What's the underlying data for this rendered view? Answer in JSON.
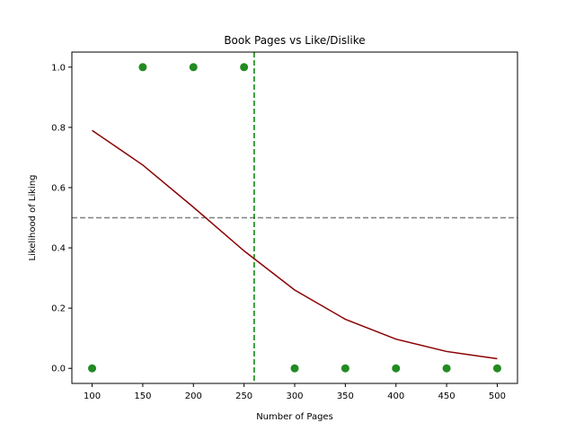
{
  "chart_data": {
    "type": "scatter",
    "title": "Book Pages vs Like/Dislike",
    "xlabel": "Number of Pages",
    "ylabel": "Likelihood of Liking",
    "xlim": [
      80,
      520
    ],
    "ylim": [
      -0.05,
      1.05
    ],
    "xticks": [
      100,
      150,
      200,
      250,
      300,
      350,
      400,
      450,
      500
    ],
    "yticks": [
      0.0,
      0.2,
      0.4,
      0.6,
      0.8,
      1.0
    ],
    "ytick_labels": [
      "0.0",
      "0.2",
      "0.4",
      "0.6",
      "0.8",
      "1.0"
    ],
    "grid": false,
    "points": {
      "x": [
        100,
        150,
        200,
        250,
        300,
        350,
        400,
        450,
        500
      ],
      "y": [
        0,
        1,
        1,
        1,
        0,
        0,
        0,
        0,
        0
      ],
      "color": "#228b22"
    },
    "curve": {
      "x": [
        100,
        150,
        200,
        250,
        300,
        350,
        400,
        450,
        500
      ],
      "y": [
        0.79,
        0.675,
        0.535,
        0.39,
        0.26,
        0.163,
        0.097,
        0.056,
        0.032
      ],
      "color": "#8b0000"
    },
    "reference_lines": {
      "horizontal": {
        "y": 0.5,
        "color": "#808080",
        "style": "dashed"
      },
      "vertical": {
        "x": 260,
        "color": "#008000",
        "style": "dashed"
      }
    }
  }
}
